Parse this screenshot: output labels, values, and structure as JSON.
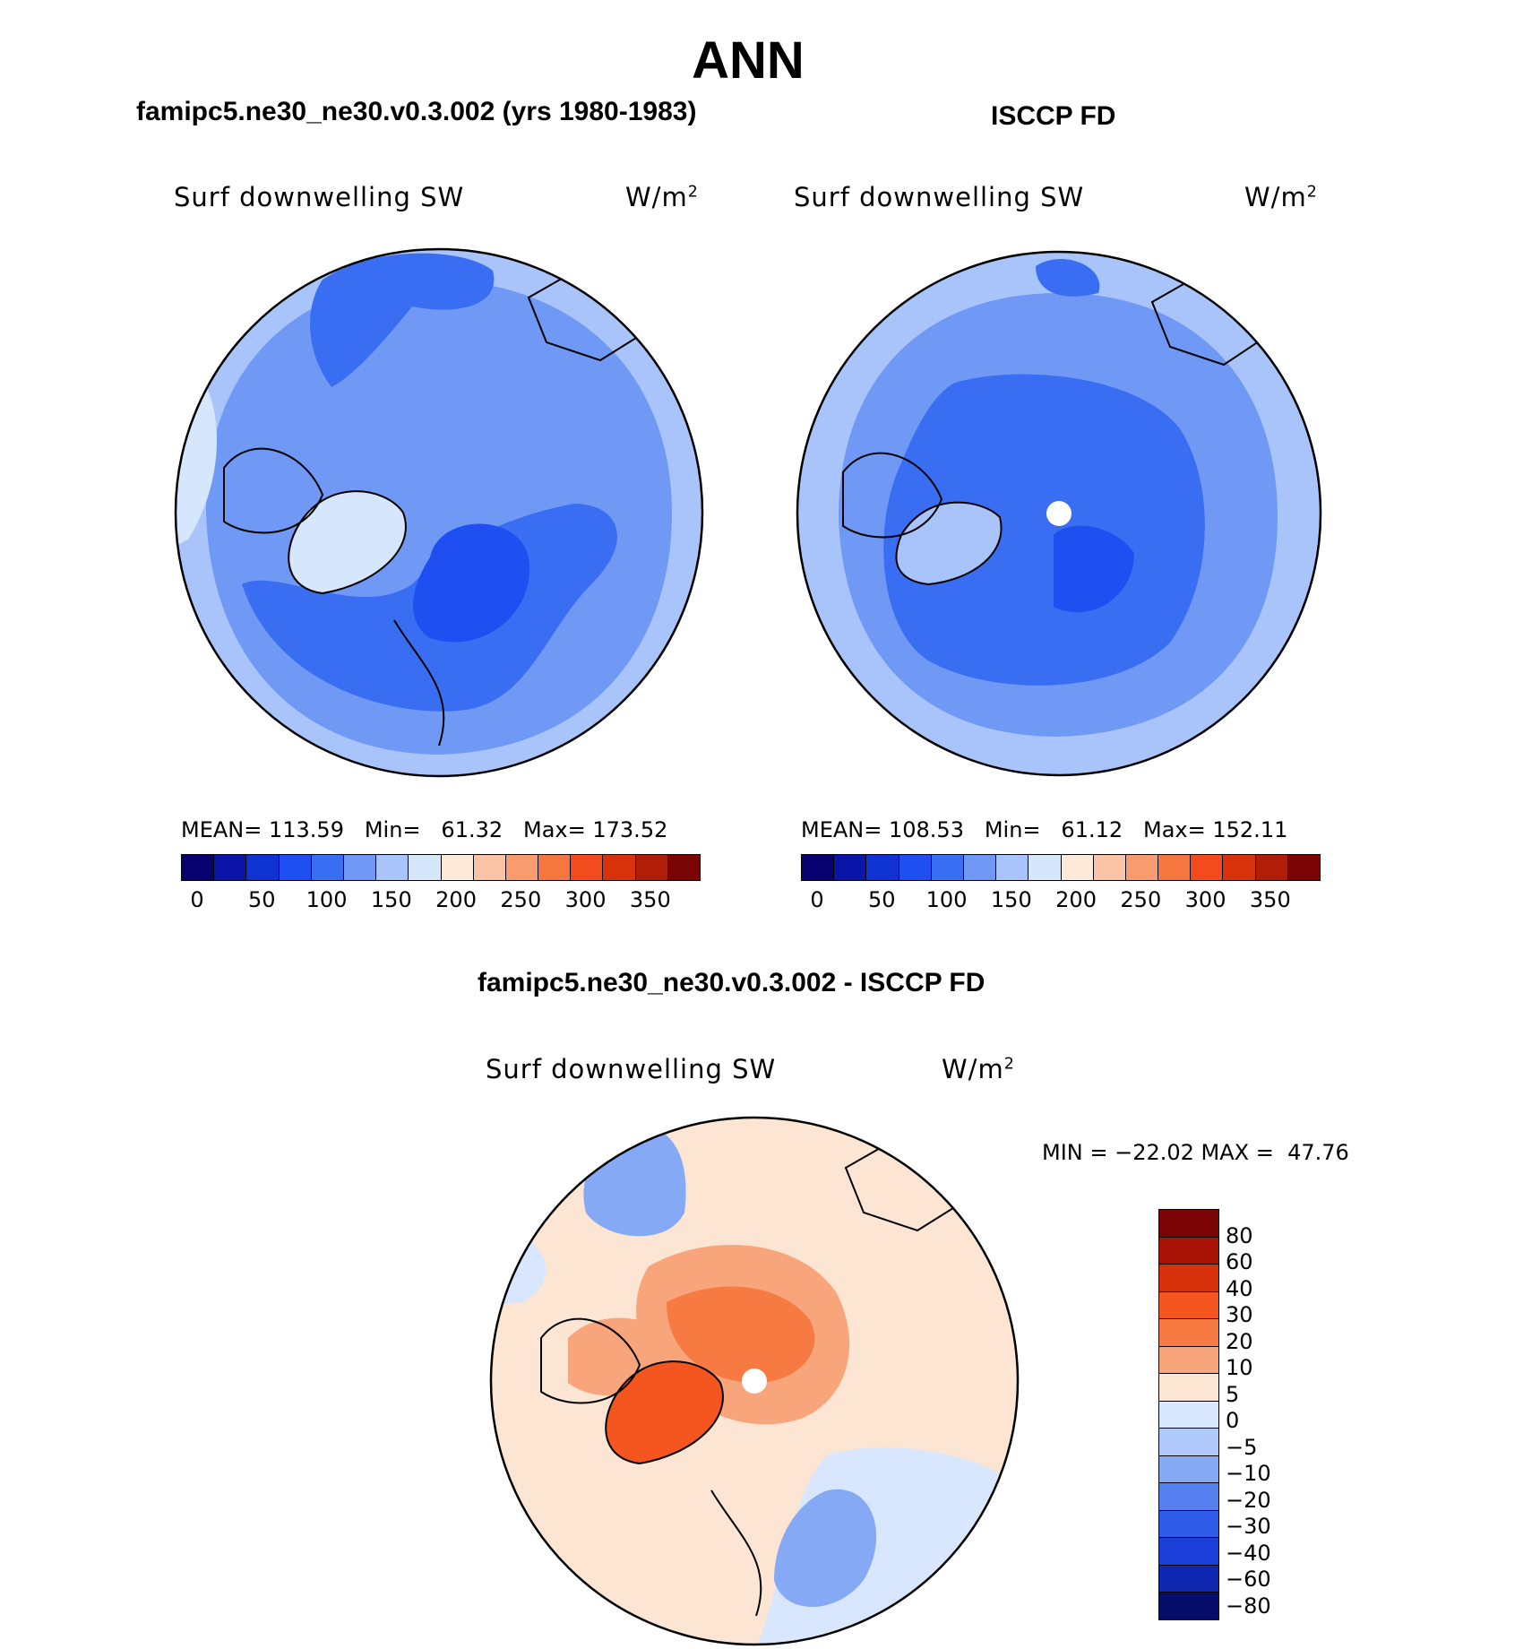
{
  "figure_title": "ANN",
  "panels": [
    {
      "title": "famipc5.ne30_ne30.v0.3.002 (yrs 1980-1983)",
      "variable": "Surf downwelling SW",
      "units": "W/m",
      "units_sup": "2",
      "stats": "MEAN= 113.59   Min=   61.32   Max= 173.52"
    },
    {
      "title": "ISCCP FD",
      "variable": "Surf downwelling SW",
      "units": "W/m",
      "units_sup": "2",
      "stats": "MEAN= 108.53   Min=   61.12   Max= 152.11"
    },
    {
      "title": "famipc5.ne30_ne30.v0.3.002 - ISCCP FD",
      "variable": "Surf downwelling SW",
      "units": "W/m",
      "units_sup": "2",
      "stats": "MIN = −22.02 MAX =  47.76"
    }
  ],
  "colorbar_abs": {
    "colors": [
      "#08006e",
      "#0a14a6",
      "#0f32d2",
      "#1f4ff0",
      "#3a6ef2",
      "#6f99f5",
      "#a9c4fa",
      "#d6e6fd",
      "#fde9d8",
      "#fbc3a6",
      "#f89b6f",
      "#f5773f",
      "#f24c1e",
      "#d9330e",
      "#b01e07",
      "#7a0303"
    ],
    "labels": [
      "0",
      "50",
      "100",
      "150",
      "200",
      "250",
      "300",
      "350"
    ]
  },
  "colorbar_diff": {
    "colors": [
      "#7a0303",
      "#a81305",
      "#d8320d",
      "#f5551f",
      "#f77a43",
      "#f9a57c",
      "#fde5d3",
      "#d8e7fd",
      "#b0c9fb",
      "#86a9f6",
      "#5680f0",
      "#2f5de9",
      "#1b3fd8",
      "#0f27b0",
      "#060d6b"
    ],
    "labels": [
      "80",
      "60",
      "40",
      "30",
      "20",
      "10",
      "5",
      "0",
      "−5",
      "−10",
      "−20",
      "−30",
      "−40",
      "−60",
      "−80"
    ]
  }
}
